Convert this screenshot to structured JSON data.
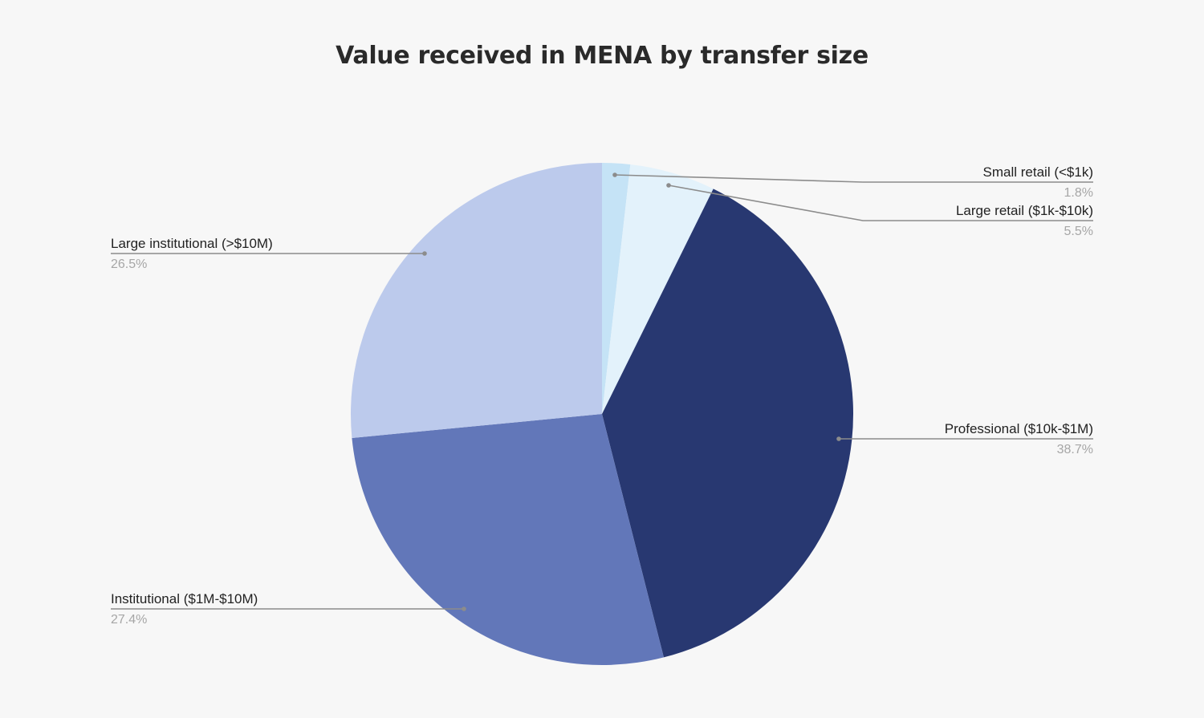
{
  "chart_data": {
    "type": "pie",
    "title": "Value received in MENA by transfer size",
    "start_angle_deg": 0,
    "direction": "clockwise",
    "legend_position": "labeled callouts",
    "slices": [
      {
        "label": "Small retail (<$1k)",
        "value": 1.8,
        "display": "1.8%",
        "color": "#c5e3f6"
      },
      {
        "label": "Large retail ($1k-$10k)",
        "value": 5.5,
        "display": "5.5%",
        "color": "#e3f2fb"
      },
      {
        "label": "Professional ($10k-$1M)",
        "value": 38.7,
        "display": "38.7%",
        "color": "#283871"
      },
      {
        "label": "Institutional ($1M-$10M)",
        "value": 27.4,
        "display": "27.4%",
        "color": "#6277b9"
      },
      {
        "label": "Large institutional (>$10M)",
        "value": 26.5,
        "display": "26.5%",
        "color": "#bccaec"
      }
    ]
  },
  "colors": {
    "background": "#f7f7f7",
    "leader_line": "#8c8c8c",
    "label_text": "#222222",
    "percent_text": "#a6a6a6"
  }
}
